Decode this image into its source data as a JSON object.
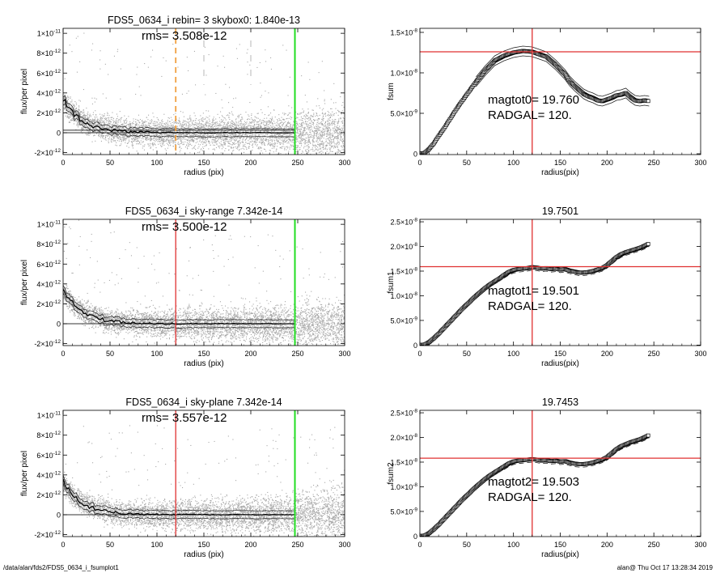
{
  "footer": {
    "left": "/data/alan/fds2/FDS5_0634_i_fsumplot1",
    "right": "alan@  Thu Oct 17 13:28:34 2019"
  },
  "colors": {
    "noise": "#a8a8a8",
    "red": "#e03030",
    "green": "#22dd22",
    "orange": "#f0a040",
    "dash": "#999999"
  },
  "chart_data": [
    {
      "type": "scatter",
      "panel": "profile-1",
      "title": "FDS5_0634_i rebin= 3    skybox0:  1.840e-13",
      "annotation": "rms= 3.508e-12",
      "xlabel": "radius (pix)",
      "ylabel": "flux/per pixel",
      "xlim": [
        0,
        300
      ],
      "ylim": [
        -2.2e-12,
        1.05e-11
      ],
      "xticks": [
        "0",
        "50",
        "100",
        "150",
        "200",
        "250",
        "300"
      ],
      "yticks": [
        {
          "base": "-2×10",
          "exp": "-12",
          "value": -2e-12
        },
        {
          "base": "0",
          "exp": "",
          "value": 0
        },
        {
          "base": "2×10",
          "exp": "-12",
          "value": 2e-12
        },
        {
          "base": "4×10",
          "exp": "-12",
          "value": 4e-12
        },
        {
          "base": "6×10",
          "exp": "-12",
          "value": 6e-12
        },
        {
          "base": "8×10",
          "exp": "-12",
          "value": 8e-12
        },
        {
          "base": "1×10",
          "exp": "-11",
          "value": 1e-11
        }
      ],
      "vlines": [
        {
          "x": 120,
          "style": "orange-dashed"
        },
        {
          "x": 150,
          "style": "gray-dashed"
        },
        {
          "x": 200,
          "style": "gray-dashed"
        },
        {
          "x": 247,
          "style": "green"
        }
      ],
      "hlines": [
        0,
        2.5e-13
      ]
    },
    {
      "type": "line",
      "panel": "growth-1",
      "title": "",
      "xlabel": "radius(pix)",
      "ylabel": "fsum",
      "xlim": [
        0,
        300
      ],
      "ylim": [
        -1e-10,
        1.55e-08
      ],
      "xticks": [
        "0",
        "50",
        "100",
        "150",
        "200",
        "250",
        "300"
      ],
      "yticks": [
        {
          "base": "0",
          "exp": "",
          "value": 0
        },
        {
          "base": "5.0×10",
          "exp": "-9",
          "value": 5e-09
        },
        {
          "base": "1.0×10",
          "exp": "-8",
          "value": 1e-08
        },
        {
          "base": "1.5×10",
          "exp": "-8",
          "value": 1.5e-08
        }
      ],
      "annotations": [
        "magtot0=  19.760",
        "RADGAL=    120."
      ],
      "vline": 120,
      "hline": 1.26e-08,
      "x": [
        0,
        5,
        10,
        15,
        20,
        25,
        30,
        35,
        40,
        45,
        50,
        55,
        60,
        65,
        70,
        75,
        80,
        85,
        90,
        95,
        100,
        105,
        110,
        115,
        120,
        125,
        130,
        135,
        140,
        145,
        150,
        155,
        160,
        165,
        170,
        175,
        180,
        185,
        190,
        195,
        200,
        205,
        210,
        215,
        220,
        225,
        230,
        235,
        240,
        245
      ],
      "y": [
        0.0,
        1e-10,
        6e-10,
        1.3e-09,
        2.2e-09,
        3e-09,
        3.9e-09,
        4.8e-09,
        5.7e-09,
        6.5e-09,
        7.3e-09,
        8.1e-09,
        8.9e-09,
        9.6e-09,
        1.03e-08,
        1.09e-08,
        1.15e-08,
        1.18e-08,
        1.21e-08,
        1.23e-08,
        1.25e-08,
        1.26e-08,
        1.27e-08,
        1.265e-08,
        1.26e-08,
        1.24e-08,
        1.22e-08,
        1.2e-08,
        1.15e-08,
        1.1e-08,
        1.04e-08,
        9.8e-09,
        9e-09,
        8.4e-09,
        7.9e-09,
        7.4e-09,
        7.1e-09,
        6.9e-09,
        6.6e-09,
        6.5e-09,
        6.7e-09,
        6.9e-09,
        7.2e-09,
        7.3e-09,
        7.5e-09,
        7e-09,
        6.6e-09,
        6.5e-09,
        6.6e-09,
        6.5e-09
      ],
      "band": 6e-10,
      "band_start": 60
    },
    {
      "type": "scatter",
      "panel": "profile-2",
      "title": "FDS5_0634_i sky-range  7.342e-14",
      "annotation": "rms= 3.500e-12",
      "xlabel": "radius (pix)",
      "ylabel": "flux/per pixel",
      "xlim": [
        0,
        300
      ],
      "ylim": [
        -2.2e-12,
        1.05e-11
      ],
      "xticks": [
        "0",
        "50",
        "100",
        "150",
        "200",
        "250",
        "300"
      ],
      "yticks": [
        {
          "base": "-2×10",
          "exp": "-12",
          "value": -2e-12
        },
        {
          "base": "0",
          "exp": "",
          "value": 0
        },
        {
          "base": "2×10",
          "exp": "-12",
          "value": 2e-12
        },
        {
          "base": "4×10",
          "exp": "-12",
          "value": 4e-12
        },
        {
          "base": "6×10",
          "exp": "-12",
          "value": 6e-12
        },
        {
          "base": "8×10",
          "exp": "-12",
          "value": 8e-12
        },
        {
          "base": "1×10",
          "exp": "-11",
          "value": 1e-11
        }
      ],
      "vlines": [
        {
          "x": 120,
          "style": "red"
        },
        {
          "x": 247,
          "style": "green"
        }
      ],
      "hlines": [
        0
      ]
    },
    {
      "type": "line",
      "panel": "growth-2",
      "title": "19.7501",
      "xlabel": "radius(pix)",
      "ylabel": "fsum1",
      "xlim": [
        0,
        300
      ],
      "ylim": [
        -1e-10,
        2.55e-08
      ],
      "xticks": [
        "0",
        "50",
        "100",
        "150",
        "200",
        "250",
        "300"
      ],
      "yticks": [
        {
          "base": "0",
          "exp": "",
          "value": 0
        },
        {
          "base": "5.0×10",
          "exp": "-9",
          "value": 5e-09
        },
        {
          "base": "1.0×10",
          "exp": "-8",
          "value": 1e-08
        },
        {
          "base": "1.5×10",
          "exp": "-8",
          "value": 1.5e-08
        },
        {
          "base": "2.0×10",
          "exp": "-8",
          "value": 2e-08
        },
        {
          "base": "2.5×10",
          "exp": "-8",
          "value": 2.5e-08
        }
      ],
      "annotations": [
        "magtot1=  19.501",
        "RADGAL=    120."
      ],
      "vline": 120,
      "hline": 1.59e-08,
      "x": [
        0,
        5,
        10,
        15,
        20,
        25,
        30,
        35,
        40,
        45,
        50,
        55,
        60,
        65,
        70,
        75,
        80,
        85,
        90,
        95,
        100,
        105,
        110,
        115,
        120,
        125,
        130,
        135,
        140,
        145,
        150,
        155,
        160,
        165,
        170,
        175,
        180,
        185,
        190,
        195,
        200,
        205,
        210,
        215,
        220,
        225,
        230,
        235,
        240,
        245
      ],
      "y": [
        0.0,
        1e-10,
        6e-10,
        1.4e-09,
        2.3e-09,
        3.3e-09,
        4.3e-09,
        5.3e-09,
        6.3e-09,
        7.3e-09,
        8.2e-09,
        9.1e-09,
        1e-08,
        1.08e-08,
        1.16e-08,
        1.23e-08,
        1.29e-08,
        1.35e-08,
        1.42e-08,
        1.48e-08,
        1.52e-08,
        1.54e-08,
        1.55e-08,
        1.56e-08,
        1.58e-08,
        1.57e-08,
        1.55e-08,
        1.56e-08,
        1.54e-08,
        1.55e-08,
        1.53e-08,
        1.54e-08,
        1.51e-08,
        1.49e-08,
        1.47e-08,
        1.47e-08,
        1.48e-08,
        1.5e-08,
        1.53e-08,
        1.56e-08,
        1.62e-08,
        1.7e-08,
        1.78e-08,
        1.84e-08,
        1.88e-08,
        1.91e-08,
        1.94e-08,
        1.97e-08,
        2.01e-08,
        2.06e-08
      ],
      "band": 6e-10,
      "band_start": 90
    },
    {
      "type": "scatter",
      "panel": "profile-3",
      "title": "FDS5_0634_i sky-plane  7.342e-14",
      "annotation": "rms= 3.557e-12",
      "xlabel": "radius (pix)",
      "ylabel": "flux/per pixel",
      "xlim": [
        0,
        300
      ],
      "ylim": [
        -2.2e-12,
        1.05e-11
      ],
      "xticks": [
        "0",
        "50",
        "100",
        "150",
        "200",
        "250",
        "300"
      ],
      "yticks": [
        {
          "base": "-2×10",
          "exp": "-12",
          "value": -2e-12
        },
        {
          "base": "0",
          "exp": "",
          "value": 0
        },
        {
          "base": "2×10",
          "exp": "-12",
          "value": 2e-12
        },
        {
          "base": "4×10",
          "exp": "-12",
          "value": 4e-12
        },
        {
          "base": "6×10",
          "exp": "-12",
          "value": 6e-12
        },
        {
          "base": "8×10",
          "exp": "-12",
          "value": 8e-12
        },
        {
          "base": "1×10",
          "exp": "-11",
          "value": 1e-11
        }
      ],
      "vlines": [
        {
          "x": 120,
          "style": "red"
        },
        {
          "x": 247,
          "style": "green"
        }
      ],
      "hlines": [
        0
      ]
    },
    {
      "type": "line",
      "panel": "growth-3",
      "title": "19.7453",
      "xlabel": "radius(pix)",
      "ylabel": "fsum2",
      "xlim": [
        0,
        300
      ],
      "ylim": [
        -1e-10,
        2.55e-08
      ],
      "xticks": [
        "0",
        "50",
        "100",
        "150",
        "200",
        "250",
        "300"
      ],
      "yticks": [
        {
          "base": "0",
          "exp": "",
          "value": 0
        },
        {
          "base": "5.0×10",
          "exp": "-9",
          "value": 5e-09
        },
        {
          "base": "1.0×10",
          "exp": "-8",
          "value": 1e-08
        },
        {
          "base": "1.5×10",
          "exp": "-8",
          "value": 1.5e-08
        },
        {
          "base": "2.0×10",
          "exp": "-8",
          "value": 2e-08
        },
        {
          "base": "2.5×10",
          "exp": "-8",
          "value": 2.5e-08
        }
      ],
      "annotations": [
        "magtot2=  19.503",
        "RADGAL=    120."
      ],
      "vline": 120,
      "hline": 1.58e-08,
      "x": [
        0,
        5,
        10,
        15,
        20,
        25,
        30,
        35,
        40,
        45,
        50,
        55,
        60,
        65,
        70,
        75,
        80,
        85,
        90,
        95,
        100,
        105,
        110,
        115,
        120,
        125,
        130,
        135,
        140,
        145,
        150,
        155,
        160,
        165,
        170,
        175,
        180,
        185,
        190,
        195,
        200,
        205,
        210,
        215,
        220,
        225,
        230,
        235,
        240,
        245
      ],
      "y": [
        0.0,
        1e-10,
        6e-10,
        1.4e-09,
        2.3e-09,
        3.3e-09,
        4.3e-09,
        5.3e-09,
        6.3e-09,
        7.3e-09,
        8.2e-09,
        9.1e-09,
        1e-08,
        1.08e-08,
        1.16e-08,
        1.23e-08,
        1.29e-08,
        1.35e-08,
        1.41e-08,
        1.47e-08,
        1.51e-08,
        1.53e-08,
        1.54e-08,
        1.55e-08,
        1.56e-08,
        1.55e-08,
        1.53e-08,
        1.54e-08,
        1.52e-08,
        1.53e-08,
        1.51e-08,
        1.52e-08,
        1.49e-08,
        1.47e-08,
        1.46e-08,
        1.46e-08,
        1.47e-08,
        1.49e-08,
        1.52e-08,
        1.55e-08,
        1.6e-08,
        1.68e-08,
        1.76e-08,
        1.82e-08,
        1.86e-08,
        1.9e-08,
        1.93e-08,
        1.96e-08,
        2e-08,
        2.05e-08
      ],
      "band": 6e-10,
      "band_start": 90
    }
  ]
}
